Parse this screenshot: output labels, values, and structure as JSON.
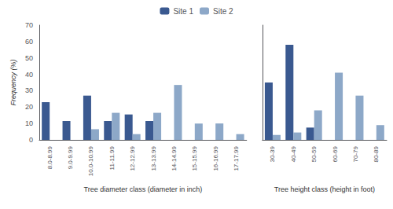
{
  "chart_data": [
    {
      "type": "bar",
      "xlabel": "Tree diameter class (diameter in inch)",
      "ylabel": "Frequency (%)",
      "categories": [
        "8.0-8.99",
        "9.0-9.99",
        "10.0-10.99",
        "11-11.99",
        "12-12.99",
        "13-13.99",
        "14-14.99",
        "15-15.99",
        "16-16.99",
        "17-17.99"
      ],
      "series": [
        {
          "name": "Site 1",
          "color": "#3a5990",
          "values": [
            23,
            11.5,
            27,
            11.5,
            15.5,
            11.5,
            0,
            0,
            0,
            0
          ]
        },
        {
          "name": "Site 2",
          "color": "#8da8c8",
          "values": [
            0,
            0,
            6.5,
            16.5,
            3.5,
            16.5,
            33.5,
            10,
            10,
            3.5
          ]
        }
      ],
      "ylim": [
        0,
        70
      ],
      "yticks": [
        0,
        10,
        20,
        30,
        40,
        50,
        60,
        70
      ],
      "grid": false,
      "legend": "top"
    },
    {
      "type": "bar",
      "xlabel": "Tree height class (height in foot)",
      "categories": [
        "30-39",
        "40-49",
        "50-59",
        "60-69",
        "70-79",
        "80-89"
      ],
      "series": [
        {
          "name": "Site 1",
          "color": "#3a5990",
          "values": [
            35,
            58,
            7.5,
            0,
            0,
            0
          ]
        },
        {
          "name": "Site 2",
          "color": "#8da8c8",
          "values": [
            3,
            4.5,
            18,
            41,
            27,
            9
          ]
        }
      ],
      "ylim": [
        0,
        70
      ],
      "yticks": [
        0,
        10,
        20,
        30,
        40,
        50,
        60,
        70
      ],
      "grid": false,
      "tick_labels": "x"
    }
  ]
}
